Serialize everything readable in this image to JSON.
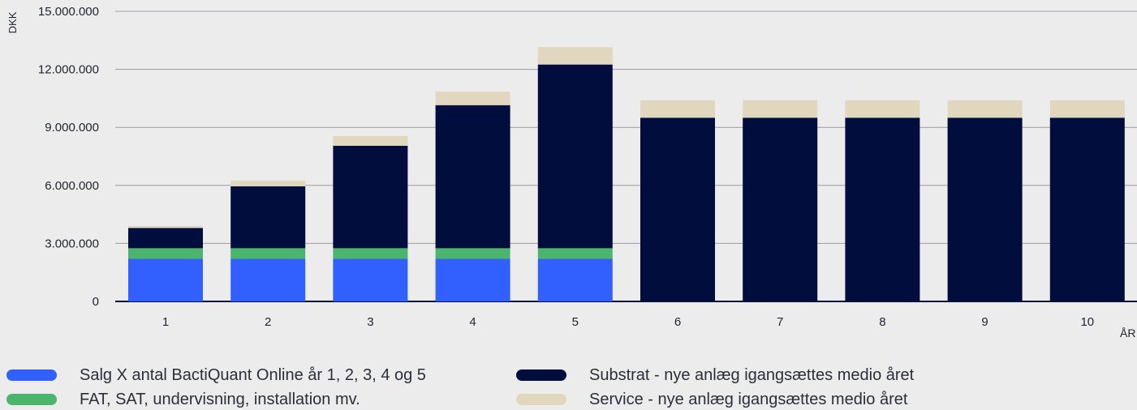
{
  "chart_data": {
    "type": "bar",
    "stacked": true,
    "ylabel": "DKK",
    "xlabel": "ÅR",
    "ylim": [
      0,
      15000000
    ],
    "yticks": [
      0,
      3000000,
      6000000,
      9000000,
      12000000,
      15000000
    ],
    "ytick_labels": [
      "0",
      "3.000.000",
      "6.000.000",
      "9.000.000",
      "12.000.000",
      "15.000.000"
    ],
    "categories": [
      "1",
      "2",
      "3",
      "4",
      "5",
      "6",
      "7",
      "8",
      "9",
      "10"
    ],
    "grid": "horizontal",
    "legend_position": "bottom",
    "series": [
      {
        "name": "Salg X antal BactiQuant Online år 1, 2, 3, 4 og 5",
        "color": "#3160ff",
        "values": [
          2200000,
          2200000,
          2200000,
          2200000,
          2200000,
          0,
          0,
          0,
          0,
          0
        ]
      },
      {
        "name": "FAT, SAT, undervisning, installation mv.",
        "color": "#4bb56e",
        "values": [
          550000,
          550000,
          550000,
          550000,
          550000,
          0,
          0,
          0,
          0,
          0
        ]
      },
      {
        "name": "Substrat - nye anlæg igangsættes medio året",
        "color": "#000d3d",
        "values": [
          1050000,
          3200000,
          5300000,
          7400000,
          9500000,
          9500000,
          9500000,
          9500000,
          9500000,
          9500000
        ]
      },
      {
        "name": "Service - nye anlæg igangsættes medio året",
        "color": "#e1d6be",
        "values": [
          100000,
          300000,
          500000,
          700000,
          900000,
          900000,
          900000,
          900000,
          900000,
          900000
        ]
      }
    ]
  },
  "colors": {
    "background": "#ececec",
    "gridline": "#9a9ca3",
    "axis": "#000d3d"
  }
}
